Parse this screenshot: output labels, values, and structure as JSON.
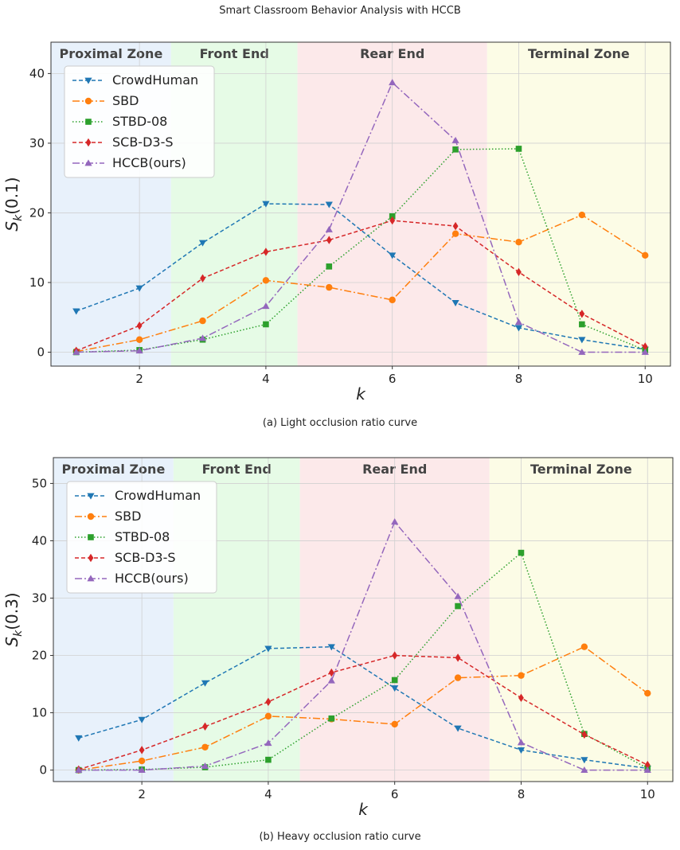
{
  "page_title": "Smart Classroom Behavior Analysis with HCCB",
  "captions": [
    "(a) Light occlusion ratio curve",
    "(b) Heavy occlusion ratio curve"
  ],
  "chart_data": [
    {
      "type": "line",
      "xlabel": "k",
      "ylabel": "S_k(0.1)",
      "ylabel_main": "S",
      "ylabel_sub": "k",
      "ylabel_arg": "(0.1)",
      "xlim": [
        0.6,
        10.4
      ],
      "ylim": [
        -2,
        44.5
      ],
      "xticks": [
        2,
        4,
        6,
        8,
        10
      ],
      "yticks": [
        0,
        10,
        20,
        30,
        40
      ],
      "grid": true,
      "legend_position": "upper-left",
      "zones": [
        {
          "label": "Proximal Zone",
          "from": 0.6,
          "to": 2.5,
          "color": "#e8f1fb"
        },
        {
          "label": "Front End",
          "from": 2.5,
          "to": 4.5,
          "color": "#e6fbe6"
        },
        {
          "label": "Rear End",
          "from": 4.5,
          "to": 7.5,
          "color": "#fce9ea"
        },
        {
          "label": "Terminal Zone",
          "from": 7.5,
          "to": 10.4,
          "color": "#fcfce6"
        }
      ],
      "x": [
        1,
        2,
        3,
        4,
        5,
        6,
        7,
        8,
        9,
        10
      ],
      "series": [
        {
          "name": "CrowdHuman",
          "color": "#1f77b4",
          "dash": "5,3",
          "marker": "triangle-down",
          "values": [
            5.9,
            9.2,
            15.7,
            21.3,
            21.2,
            13.9,
            7.1,
            3.5,
            1.8,
            0.4
          ]
        },
        {
          "name": "SBD",
          "color": "#ff7f0e",
          "dash": "9,3,2,3",
          "marker": "circle",
          "values": [
            0.1,
            1.8,
            4.5,
            10.3,
            9.3,
            7.5,
            17.0,
            15.8,
            19.7,
            13.9
          ]
        },
        {
          "name": "STBD-08",
          "color": "#2ca02c",
          "dash": "1.5,2.5",
          "marker": "square",
          "values": [
            0.0,
            0.3,
            1.8,
            4.0,
            12.3,
            19.5,
            29.1,
            29.2,
            4.0,
            0.3
          ]
        },
        {
          "name": "SCB-D3-S",
          "color": "#d62728",
          "dash": "5,3",
          "marker": "diamond",
          "values": [
            0.2,
            3.8,
            10.6,
            14.4,
            16.1,
            18.9,
            18.1,
            11.5,
            5.5,
            0.8
          ]
        },
        {
          "name": "HCCB(ours)",
          "color": "#9467bd",
          "dash": "9,3,2,3",
          "marker": "triangle-up",
          "values": [
            0.0,
            0.2,
            2.0,
            6.6,
            17.6,
            38.7,
            30.4,
            4.3,
            0.0,
            0.0
          ]
        }
      ]
    },
    {
      "type": "line",
      "xlabel": "k",
      "ylabel": "S_k(0.3)",
      "ylabel_main": "S",
      "ylabel_sub": "k",
      "ylabel_arg": "(0.3)",
      "xlim": [
        0.6,
        10.4
      ],
      "ylim": [
        -2,
        54.5
      ],
      "xticks": [
        2,
        4,
        6,
        8,
        10
      ],
      "yticks": [
        0,
        10,
        20,
        30,
        40,
        50
      ],
      "grid": true,
      "legend_position": "upper-left",
      "zones": [
        {
          "label": "Proximal Zone",
          "from": 0.6,
          "to": 2.5,
          "color": "#e8f1fb"
        },
        {
          "label": "Front End",
          "from": 2.5,
          "to": 4.5,
          "color": "#e6fbe6"
        },
        {
          "label": "Rear End",
          "from": 4.5,
          "to": 7.5,
          "color": "#fce9ea"
        },
        {
          "label": "Terminal Zone",
          "from": 7.5,
          "to": 10.4,
          "color": "#fcfce6"
        }
      ],
      "x": [
        1,
        2,
        3,
        4,
        5,
        6,
        7,
        8,
        9,
        10
      ],
      "series": [
        {
          "name": "CrowdHuman",
          "color": "#1f77b4",
          "dash": "5,3",
          "marker": "triangle-down",
          "values": [
            5.6,
            8.8,
            15.2,
            21.2,
            21.5,
            14.3,
            7.3,
            3.5,
            1.8,
            0.3
          ]
        },
        {
          "name": "SBD",
          "color": "#ff7f0e",
          "dash": "9,3,2,3",
          "marker": "circle",
          "values": [
            0.0,
            1.6,
            4.0,
            9.4,
            8.9,
            8.0,
            16.1,
            16.5,
            21.5,
            13.4
          ]
        },
        {
          "name": "STBD-08",
          "color": "#2ca02c",
          "dash": "1.5,2.5",
          "marker": "square",
          "values": [
            0.0,
            0.1,
            0.5,
            1.8,
            9.0,
            15.7,
            28.6,
            37.9,
            6.3,
            0.3
          ]
        },
        {
          "name": "SCB-D3-S",
          "color": "#d62728",
          "dash": "5,3",
          "marker": "diamond",
          "values": [
            0.1,
            3.5,
            7.6,
            11.9,
            17.0,
            20.0,
            19.6,
            12.6,
            6.2,
            0.9
          ]
        },
        {
          "name": "HCCB(ours)",
          "color": "#9467bd",
          "dash": "9,3,2,3",
          "marker": "triangle-up",
          "values": [
            0.0,
            0.0,
            0.7,
            4.7,
            15.6,
            43.3,
            30.3,
            4.8,
            0.0,
            0.0
          ]
        }
      ]
    }
  ]
}
